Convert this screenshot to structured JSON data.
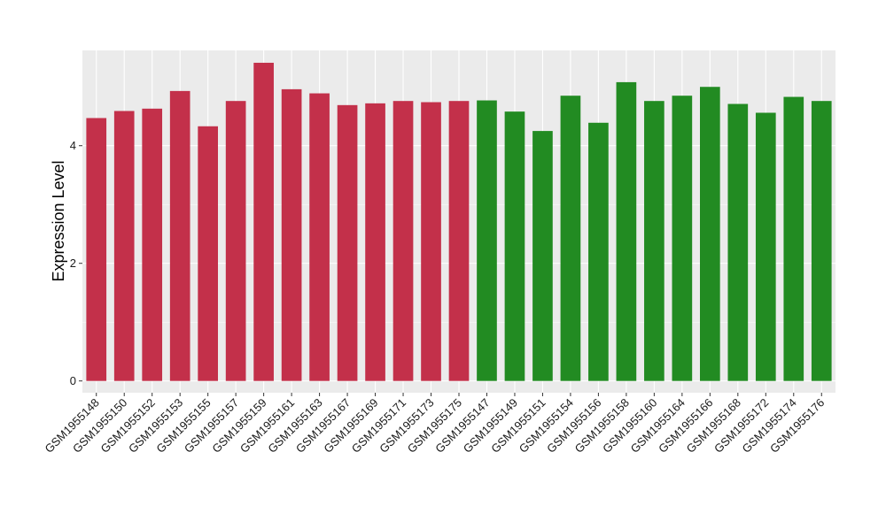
{
  "chart_data": {
    "type": "bar",
    "title": "",
    "xlabel": "",
    "ylabel": "Expression Level",
    "ylim": [
      -0.2,
      5.62
    ],
    "yticks": [
      0,
      2,
      4
    ],
    "ytick_labels": [
      "0",
      "2",
      "4"
    ],
    "grid": true,
    "legend": "none",
    "colors": {
      "group1": "#C3304A",
      "group2": "#228B22",
      "panel": "#EBEBEB",
      "grid": "#FFFFFF"
    },
    "categories": [
      "GSM1955148",
      "GSM1955150",
      "GSM1955152",
      "GSM1955153",
      "GSM1955155",
      "GSM1955157",
      "GSM1955159",
      "GSM1955161",
      "GSM1955163",
      "GSM1955167",
      "GSM1955169",
      "GSM1955171",
      "GSM1955173",
      "GSM1955175",
      "GSM1955147",
      "GSM1955149",
      "GSM1955151",
      "GSM1955154",
      "GSM1955156",
      "GSM1955158",
      "GSM1955160",
      "GSM1955164",
      "GSM1955166",
      "GSM1955168",
      "GSM1955172",
      "GSM1955174",
      "GSM1955176"
    ],
    "values": [
      4.47,
      4.59,
      4.63,
      4.93,
      4.33,
      4.76,
      5.41,
      4.96,
      4.89,
      4.69,
      4.72,
      4.76,
      4.74,
      4.76,
      4.77,
      4.58,
      4.25,
      4.85,
      4.39,
      5.08,
      4.76,
      4.85,
      5.0,
      4.71,
      4.56,
      4.83,
      4.76
    ],
    "groups": [
      1,
      1,
      1,
      1,
      1,
      1,
      1,
      1,
      1,
      1,
      1,
      1,
      1,
      1,
      2,
      2,
      2,
      2,
      2,
      2,
      2,
      2,
      2,
      2,
      2,
      2,
      2
    ]
  }
}
